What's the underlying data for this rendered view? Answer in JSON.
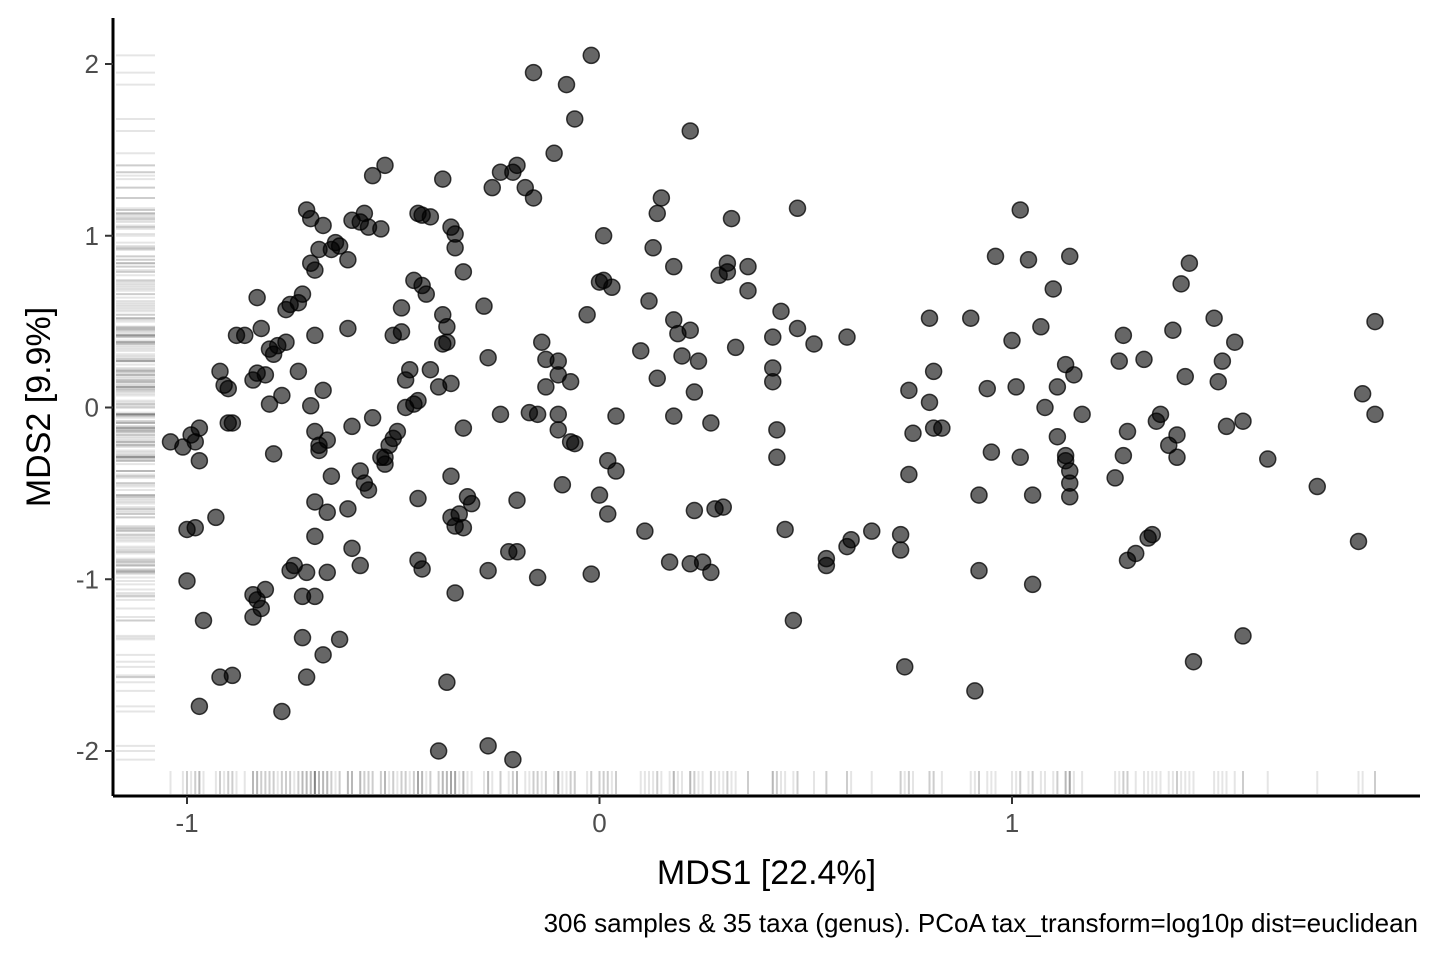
{
  "chart_data": {
    "type": "scatter",
    "xlabel": "MDS1 [22.4%]",
    "ylabel": "MDS2 [9.9%]",
    "caption": "306 samples & 35 taxa (genus). PCoA tax_transform=log10p dist=euclidean",
    "xlim": [
      -1.2,
      1.98
    ],
    "ylim": [
      -2.25,
      2.25
    ],
    "xticks": [
      -1,
      0,
      1
    ],
    "xtick_labels": [
      "-1",
      "0",
      "1"
    ],
    "yticks": [
      -2,
      -1,
      0,
      1,
      2
    ],
    "ytick_labels": [
      "-2",
      "-1",
      "0",
      "1",
      "2"
    ],
    "grid": false,
    "rug": true,
    "point_color": "#000000",
    "point_alpha": 0.6,
    "series": [
      {
        "points": [
          [
            -1.04,
            -0.2
          ],
          [
            -1.01,
            -0.23
          ],
          [
            -0.99,
            -0.16
          ],
          [
            -0.97,
            -0.12
          ],
          [
            -0.98,
            -0.2
          ],
          [
            -0.97,
            -0.31
          ],
          [
            -1.0,
            -0.71
          ],
          [
            -0.98,
            -0.7
          ],
          [
            -0.93,
            -0.64
          ],
          [
            -1.0,
            -1.01
          ],
          [
            -0.96,
            -1.24
          ],
          [
            -0.97,
            -1.74
          ],
          [
            -0.92,
            -1.57
          ],
          [
            -0.89,
            -1.56
          ],
          [
            -0.9,
            -0.09
          ],
          [
            -0.89,
            -0.09
          ],
          [
            -0.92,
            0.21
          ],
          [
            -0.91,
            0.13
          ],
          [
            -0.9,
            0.11
          ],
          [
            -0.88,
            0.42
          ],
          [
            -0.86,
            0.42
          ],
          [
            -0.83,
            0.64
          ],
          [
            -0.82,
            0.46
          ],
          [
            -0.84,
            0.16
          ],
          [
            -0.83,
            0.2
          ],
          [
            -0.81,
            0.19
          ],
          [
            -0.8,
            0.02
          ],
          [
            -0.79,
            -0.27
          ],
          [
            -0.8,
            0.34
          ],
          [
            -0.79,
            0.31
          ],
          [
            -0.78,
            0.36
          ],
          [
            -0.76,
            0.38
          ],
          [
            -0.77,
            0.07
          ],
          [
            -0.76,
            0.57
          ],
          [
            -0.75,
            0.6
          ],
          [
            -0.73,
            0.61
          ],
          [
            -0.72,
            0.66
          ],
          [
            -0.73,
            0.21
          ],
          [
            -0.7,
            0.01
          ],
          [
            -0.69,
            -0.14
          ],
          [
            -0.68,
            -0.25
          ],
          [
            -0.68,
            -0.22
          ],
          [
            -0.66,
            -0.19
          ],
          [
            -0.84,
            -1.09
          ],
          [
            -0.82,
            -1.17
          ],
          [
            -0.84,
            -1.22
          ],
          [
            -0.83,
            -1.12
          ],
          [
            -0.81,
            -1.06
          ],
          [
            -0.77,
            -1.77
          ],
          [
            -0.75,
            -0.95
          ],
          [
            -0.74,
            -0.92
          ],
          [
            -0.72,
            -1.1
          ],
          [
            -0.72,
            -1.34
          ],
          [
            -0.71,
            -1.57
          ],
          [
            -0.71,
            -0.96
          ],
          [
            -0.69,
            -1.1
          ],
          [
            -0.67,
            -1.44
          ],
          [
            -0.69,
            -0.55
          ],
          [
            -0.69,
            -0.75
          ],
          [
            -0.66,
            -0.61
          ],
          [
            -0.65,
            -0.4
          ],
          [
            -0.66,
            -0.96
          ],
          [
            -0.63,
            -1.35
          ],
          [
            -0.67,
            0.1
          ],
          [
            -0.69,
            0.42
          ],
          [
            -0.7,
            0.84
          ],
          [
            -0.69,
            0.8
          ],
          [
            -0.68,
            0.92
          ],
          [
            -0.7,
            1.1
          ],
          [
            -0.71,
            1.15
          ],
          [
            -0.67,
            1.06
          ],
          [
            -0.65,
            0.92
          ],
          [
            -0.64,
            0.96
          ],
          [
            -0.63,
            0.94
          ],
          [
            -0.61,
            0.86
          ],
          [
            -0.6,
            1.09
          ],
          [
            -0.58,
            1.08
          ],
          [
            -0.57,
            1.13
          ],
          [
            -0.56,
            1.05
          ],
          [
            -0.53,
            1.04
          ],
          [
            -0.61,
            0.46
          ],
          [
            -0.6,
            -0.11
          ],
          [
            -0.58,
            -0.37
          ],
          [
            -0.57,
            -0.44
          ],
          [
            -0.56,
            -0.48
          ],
          [
            -0.6,
            -0.82
          ],
          [
            -0.58,
            -0.92
          ],
          [
            -0.61,
            -0.59
          ],
          [
            -0.55,
            -0.06
          ],
          [
            -0.53,
            -0.29
          ],
          [
            -0.52,
            -0.29
          ],
          [
            -0.52,
            -0.33
          ],
          [
            -0.51,
            -0.22
          ],
          [
            -0.5,
            -0.18
          ],
          [
            -0.49,
            -0.14
          ],
          [
            -0.47,
            0.0
          ],
          [
            -0.48,
            0.44
          ],
          [
            -0.5,
            0.42
          ],
          [
            -0.48,
            0.58
          ],
          [
            -0.47,
            0.16
          ],
          [
            -0.46,
            0.22
          ],
          [
            -0.45,
            0.74
          ],
          [
            -0.43,
            0.71
          ],
          [
            -0.42,
            0.66
          ],
          [
            -0.44,
            1.13
          ],
          [
            -0.43,
            1.12
          ],
          [
            -0.41,
            1.11
          ],
          [
            -0.45,
            0.02
          ],
          [
            -0.44,
            0.04
          ],
          [
            -0.41,
            0.22
          ],
          [
            -0.39,
            0.12
          ],
          [
            -0.38,
            0.54
          ],
          [
            -0.37,
            0.47
          ],
          [
            -0.37,
            0.38
          ],
          [
            -0.38,
            0.37
          ],
          [
            -0.36,
            1.05
          ],
          [
            -0.35,
            1.01
          ],
          [
            -0.35,
            0.93
          ],
          [
            -0.33,
            0.79
          ],
          [
            -0.36,
            0.14
          ],
          [
            -0.33,
            -0.12
          ],
          [
            -0.32,
            -0.52
          ],
          [
            -0.31,
            -0.56
          ],
          [
            -0.34,
            -0.62
          ],
          [
            -0.36,
            -0.64
          ],
          [
            -0.35,
            -0.69
          ],
          [
            -0.33,
            -0.7
          ],
          [
            -0.36,
            -0.4
          ],
          [
            -0.37,
            -1.6
          ],
          [
            -0.35,
            -1.08
          ],
          [
            -0.39,
            -2.0
          ],
          [
            -0.44,
            -0.53
          ],
          [
            -0.44,
            -0.89
          ],
          [
            -0.43,
            -0.94
          ],
          [
            -0.55,
            1.35
          ],
          [
            -0.52,
            1.41
          ],
          [
            -0.38,
            1.33
          ],
          [
            -0.27,
            0.29
          ],
          [
            -0.28,
            0.59
          ],
          [
            -0.26,
            1.28
          ],
          [
            -0.24,
            1.37
          ],
          [
            -0.21,
            1.37
          ],
          [
            -0.2,
            1.41
          ],
          [
            -0.18,
            1.28
          ],
          [
            -0.16,
            1.22
          ],
          [
            -0.17,
            -0.03
          ],
          [
            -0.15,
            -0.04
          ],
          [
            -0.2,
            -0.54
          ],
          [
            -0.24,
            -0.04
          ],
          [
            -0.22,
            -0.84
          ],
          [
            -0.2,
            -0.84
          ],
          [
            -0.27,
            -0.95
          ],
          [
            -0.27,
            -1.97
          ],
          [
            -0.21,
            -2.05
          ],
          [
            -0.15,
            -0.99
          ],
          [
            -0.16,
            1.95
          ],
          [
            -0.11,
            1.48
          ],
          [
            -0.08,
            1.88
          ],
          [
            -0.06,
            1.68
          ],
          [
            -0.02,
            2.05
          ],
          [
            -0.14,
            0.38
          ],
          [
            -0.13,
            0.28
          ],
          [
            -0.13,
            0.12
          ],
          [
            -0.1,
            0.27
          ],
          [
            -0.1,
            -0.04
          ],
          [
            -0.1,
            -0.13
          ],
          [
            -0.1,
            0.19
          ],
          [
            -0.07,
            0.15
          ],
          [
            -0.09,
            -0.45
          ],
          [
            -0.07,
            -0.2
          ],
          [
            -0.06,
            -0.21
          ],
          [
            0.0,
            -0.51
          ],
          [
            -0.03,
            0.54
          ],
          [
            0.0,
            0.73
          ],
          [
            0.01,
            1.0
          ],
          [
            0.03,
            0.7
          ],
          [
            0.02,
            -0.31
          ],
          [
            0.04,
            -0.37
          ],
          [
            0.04,
            -0.05
          ],
          [
            0.02,
            -0.62
          ],
          [
            -0.02,
            -0.97
          ],
          [
            0.1,
            0.33
          ],
          [
            0.12,
            0.62
          ],
          [
            0.13,
            0.93
          ],
          [
            0.14,
            1.13
          ],
          [
            0.15,
            1.22
          ],
          [
            0.14,
            0.17
          ],
          [
            0.11,
            -0.72
          ],
          [
            0.18,
            0.51
          ],
          [
            0.19,
            0.43
          ],
          [
            0.2,
            0.3
          ],
          [
            0.18,
            0.82
          ],
          [
            0.22,
            0.45
          ],
          [
            0.22,
            1.61
          ],
          [
            0.23,
            0.09
          ],
          [
            0.24,
            0.27
          ],
          [
            0.18,
            -0.05
          ],
          [
            0.17,
            -0.9
          ],
          [
            0.22,
            -0.91
          ],
          [
            0.25,
            -0.9
          ],
          [
            0.27,
            -0.96
          ],
          [
            0.23,
            -0.6
          ],
          [
            0.28,
            -0.59
          ],
          [
            0.27,
            -0.09
          ],
          [
            0.29,
            0.77
          ],
          [
            0.31,
            0.84
          ],
          [
            0.31,
            0.79
          ],
          [
            0.32,
            1.1
          ],
          [
            0.33,
            0.35
          ],
          [
            0.3,
            -0.58
          ],
          [
            0.36,
            0.82
          ],
          [
            0.36,
            0.68
          ],
          [
            0.42,
            0.41
          ],
          [
            0.42,
            0.23
          ],
          [
            0.42,
            0.15
          ],
          [
            0.43,
            -0.13
          ],
          [
            0.43,
            -0.29
          ],
          [
            0.44,
            0.56
          ],
          [
            0.45,
            -0.71
          ],
          [
            0.47,
            -1.24
          ],
          [
            0.48,
            0.46
          ],
          [
            0.48,
            1.16
          ],
          [
            0.52,
            0.37
          ],
          [
            0.55,
            -0.88
          ],
          [
            0.55,
            -0.92
          ],
          [
            0.6,
            -0.81
          ],
          [
            0.61,
            -0.77
          ],
          [
            0.6,
            0.41
          ],
          [
            0.66,
            -0.72
          ],
          [
            0.73,
            -0.74
          ],
          [
            0.73,
            -0.83
          ],
          [
            0.75,
            0.1
          ],
          [
            0.76,
            -0.15
          ],
          [
            0.75,
            -0.39
          ],
          [
            0.74,
            -1.51
          ],
          [
            0.8,
            0.52
          ],
          [
            0.81,
            0.21
          ],
          [
            0.8,
            0.03
          ],
          [
            0.81,
            -0.12
          ],
          [
            0.83,
            -0.12
          ],
          [
            0.9,
            0.52
          ],
          [
            0.91,
            -1.65
          ],
          [
            0.92,
            -0.51
          ],
          [
            0.92,
            -0.95
          ],
          [
            0.94,
            0.11
          ],
          [
            0.95,
            -0.26
          ],
          [
            0.96,
            0.88
          ],
          [
            1.0,
            0.39
          ],
          [
            1.01,
            0.12
          ],
          [
            1.02,
            1.15
          ],
          [
            1.02,
            -0.29
          ],
          [
            1.04,
            0.86
          ],
          [
            1.05,
            -0.51
          ],
          [
            1.05,
            -1.03
          ],
          [
            1.07,
            0.47
          ],
          [
            1.08,
            0.0
          ],
          [
            1.1,
            0.69
          ],
          [
            1.11,
            0.12
          ],
          [
            1.11,
            -0.17
          ],
          [
            1.13,
            0.25
          ],
          [
            1.14,
            0.88
          ],
          [
            1.15,
            0.19
          ],
          [
            1.13,
            -0.28
          ],
          [
            1.13,
            -0.31
          ],
          [
            1.14,
            -0.37
          ],
          [
            1.14,
            -0.44
          ],
          [
            1.14,
            -0.52
          ],
          [
            1.17,
            -0.04
          ],
          [
            1.25,
            -0.41
          ],
          [
            1.26,
            0.27
          ],
          [
            1.27,
            0.42
          ],
          [
            1.27,
            -0.28
          ],
          [
            1.28,
            -0.14
          ],
          [
            1.28,
            -0.89
          ],
          [
            1.3,
            -0.85
          ],
          [
            1.32,
            0.28
          ],
          [
            1.33,
            -0.76
          ],
          [
            1.34,
            -0.74
          ],
          [
            1.35,
            -0.08
          ],
          [
            1.36,
            -0.04
          ],
          [
            1.38,
            -0.22
          ],
          [
            1.39,
            0.45
          ],
          [
            1.4,
            -0.16
          ],
          [
            1.4,
            -0.29
          ],
          [
            1.41,
            0.72
          ],
          [
            1.42,
            0.18
          ],
          [
            1.43,
            0.84
          ],
          [
            1.44,
            -1.48
          ],
          [
            1.49,
            0.52
          ],
          [
            1.5,
            0.15
          ],
          [
            1.51,
            0.27
          ],
          [
            1.52,
            -0.11
          ],
          [
            1.54,
            0.38
          ],
          [
            1.56,
            -0.08
          ],
          [
            1.56,
            -1.33
          ],
          [
            1.62,
            -0.3
          ],
          [
            1.74,
            -0.46
          ],
          [
            1.84,
            -0.78
          ],
          [
            1.85,
            0.08
          ],
          [
            1.88,
            -0.04
          ],
          [
            1.88,
            0.5
          ],
          [
            0.01,
            0.74
          ]
        ]
      }
    ]
  }
}
